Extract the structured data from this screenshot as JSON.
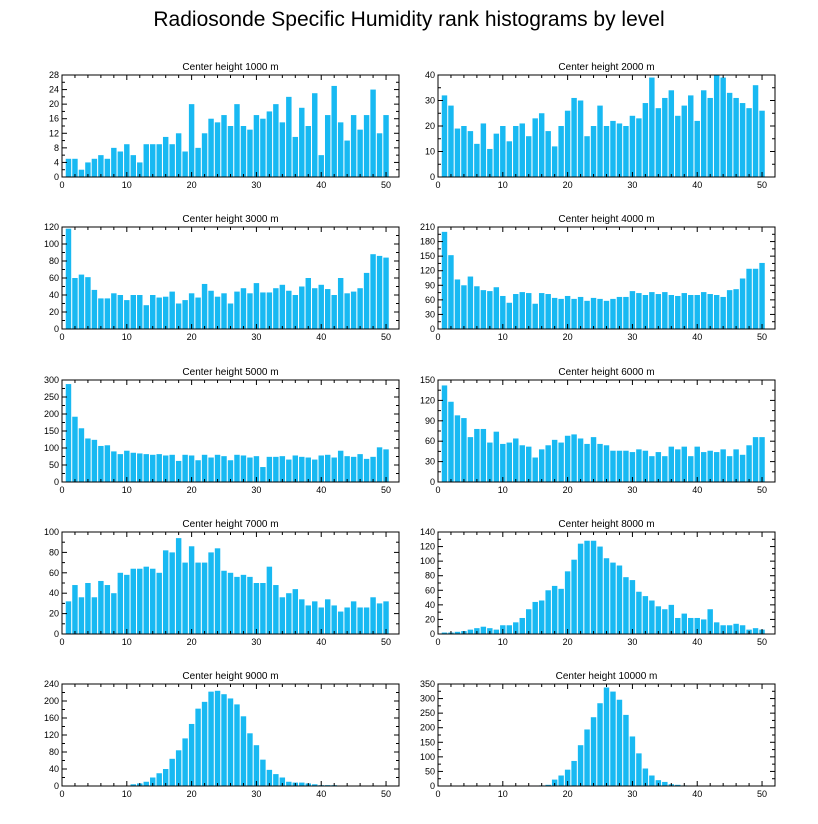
{
  "title": "Radiosonde Specific Humidity rank histograms by level",
  "colors": {
    "bar": "#18b9f2",
    "axis": "#000000",
    "background": "#ffffff"
  },
  "chart_data": [
    {
      "type": "bar",
      "title": "Center height 1000 m",
      "x_start": 1,
      "xlim": [
        0,
        52
      ],
      "xticks": [
        0,
        10,
        20,
        30,
        40,
        50
      ],
      "ylim": [
        0,
        28
      ],
      "yticks": [
        0,
        4,
        8,
        12,
        16,
        20,
        24,
        28
      ],
      "values": [
        5,
        5,
        2,
        4,
        5,
        6,
        5,
        8,
        7,
        9,
        6,
        4,
        9,
        9,
        9,
        11,
        9,
        12,
        7,
        20,
        8,
        12,
        16,
        15,
        17,
        14,
        20,
        14,
        13,
        17,
        16,
        18,
        20,
        15,
        22,
        11,
        19,
        14,
        23,
        6,
        17,
        25,
        15,
        10,
        17,
        13,
        17,
        24,
        12,
        17
      ]
    },
    {
      "type": "bar",
      "title": "Center height 2000 m",
      "x_start": 1,
      "xlim": [
        0,
        52
      ],
      "xticks": [
        0,
        10,
        20,
        30,
        40,
        50
      ],
      "ylim": [
        0,
        40
      ],
      "yticks": [
        0,
        10,
        20,
        30,
        40
      ],
      "values": [
        32,
        28,
        19,
        20,
        18,
        13,
        21,
        11,
        17,
        20,
        14,
        20,
        21,
        16,
        23,
        25,
        18,
        12,
        20,
        26,
        31,
        30,
        16,
        20,
        28,
        20,
        22,
        21,
        20,
        24,
        23,
        29,
        39,
        27,
        31,
        34,
        24,
        28,
        32,
        22,
        34,
        31,
        40,
        39,
        33,
        31,
        29,
        27,
        36,
        26
      ]
    },
    {
      "type": "bar",
      "title": "Center height 3000 m",
      "x_start": 1,
      "xlim": [
        0,
        52
      ],
      "xticks": [
        0,
        10,
        20,
        30,
        40,
        50
      ],
      "ylim": [
        0,
        120
      ],
      "yticks": [
        0,
        20,
        40,
        60,
        80,
        100,
        120
      ],
      "values": [
        118,
        60,
        64,
        61,
        46,
        36,
        36,
        42,
        40,
        34,
        40,
        40,
        28,
        40,
        37,
        38,
        44,
        30,
        34,
        42,
        37,
        53,
        45,
        38,
        42,
        30,
        44,
        48,
        42,
        54,
        43,
        43,
        48,
        52,
        45,
        40,
        50,
        60,
        48,
        52,
        47,
        40,
        60,
        42,
        44,
        48,
        66,
        88,
        86,
        84
      ]
    },
    {
      "type": "bar",
      "title": "Center height 4000 m",
      "x_start": 1,
      "xlim": [
        0,
        52
      ],
      "xticks": [
        0,
        10,
        20,
        30,
        40,
        50
      ],
      "ylim": [
        0,
        210
      ],
      "yticks": [
        0,
        30,
        60,
        90,
        120,
        150,
        180,
        210
      ],
      "values": [
        200,
        152,
        102,
        90,
        108,
        88,
        80,
        78,
        86,
        68,
        54,
        72,
        76,
        74,
        52,
        74,
        72,
        64,
        62,
        68,
        62,
        66,
        58,
        64,
        62,
        58,
        62,
        66,
        66,
        78,
        74,
        70,
        76,
        72,
        76,
        70,
        68,
        74,
        70,
        70,
        76,
        72,
        70,
        66,
        80,
        82,
        104,
        124,
        124,
        136
      ]
    },
    {
      "type": "bar",
      "title": "Center height 5000 m",
      "x_start": 1,
      "xlim": [
        0,
        52
      ],
      "xticks": [
        0,
        10,
        20,
        30,
        40,
        50
      ],
      "ylim": [
        0,
        300
      ],
      "yticks": [
        0,
        50,
        100,
        150,
        200,
        250,
        300
      ],
      "values": [
        288,
        192,
        158,
        128,
        124,
        106,
        108,
        90,
        82,
        92,
        86,
        84,
        82,
        80,
        82,
        78,
        80,
        62,
        80,
        78,
        64,
        80,
        72,
        80,
        76,
        64,
        80,
        78,
        72,
        76,
        44,
        74,
        74,
        76,
        66,
        78,
        74,
        72,
        66,
        78,
        80,
        72,
        92,
        76,
        74,
        82,
        68,
        74,
        102,
        96
      ]
    },
    {
      "type": "bar",
      "title": "Center height 6000 m",
      "x_start": 1,
      "xlim": [
        0,
        52
      ],
      "xticks": [
        0,
        10,
        20,
        30,
        40,
        50
      ],
      "ylim": [
        0,
        150
      ],
      "yticks": [
        0,
        30,
        60,
        90,
        120,
        150
      ],
      "values": [
        142,
        118,
        98,
        94,
        66,
        78,
        78,
        58,
        74,
        56,
        58,
        64,
        54,
        52,
        36,
        48,
        54,
        62,
        58,
        68,
        70,
        64,
        56,
        66,
        56,
        54,
        46,
        46,
        46,
        44,
        48,
        46,
        38,
        44,
        38,
        52,
        48,
        52,
        38,
        52,
        44,
        46,
        44,
        48,
        38,
        48,
        40,
        54,
        66,
        66
      ]
    },
    {
      "type": "bar",
      "title": "Center height 7000 m",
      "x_start": 1,
      "xlim": [
        0,
        52
      ],
      "xticks": [
        0,
        10,
        20,
        30,
        40,
        50
      ],
      "ylim": [
        0,
        100
      ],
      "yticks": [
        0,
        20,
        40,
        60,
        80,
        100
      ],
      "values": [
        32,
        48,
        36,
        50,
        36,
        52,
        48,
        40,
        60,
        58,
        64,
        64,
        66,
        64,
        60,
        82,
        80,
        94,
        70,
        86,
        70,
        70,
        80,
        84,
        62,
        60,
        56,
        58,
        56,
        50,
        50,
        66,
        48,
        36,
        40,
        44,
        34,
        28,
        32,
        26,
        34,
        28,
        22,
        26,
        32,
        26,
        26,
        36,
        30,
        32
      ]
    },
    {
      "type": "bar",
      "title": "Center height 8000 m",
      "x_start": 1,
      "xlim": [
        0,
        52
      ],
      "xticks": [
        0,
        10,
        20,
        30,
        40,
        50
      ],
      "ylim": [
        0,
        140
      ],
      "yticks": [
        0,
        20,
        40,
        60,
        80,
        100,
        120,
        140
      ],
      "values": [
        2,
        2,
        3,
        4,
        6,
        8,
        10,
        8,
        6,
        12,
        12,
        16,
        22,
        34,
        44,
        46,
        60,
        66,
        62,
        86,
        102,
        124,
        128,
        128,
        120,
        104,
        98,
        94,
        78,
        74,
        58,
        52,
        46,
        38,
        34,
        40,
        22,
        28,
        22,
        22,
        20,
        34,
        16,
        12,
        12,
        14,
        12,
        6,
        8,
        6
      ]
    },
    {
      "type": "bar",
      "title": "Center height 9000 m",
      "x_start": 1,
      "xlim": [
        0,
        52
      ],
      "xticks": [
        0,
        10,
        20,
        30,
        40,
        50
      ],
      "ylim": [
        0,
        240
      ],
      "yticks": [
        0,
        40,
        80,
        120,
        160,
        200,
        240
      ],
      "values": [
        0,
        0,
        0,
        0,
        0,
        0,
        0,
        0,
        0,
        0,
        4,
        6,
        10,
        20,
        30,
        40,
        64,
        84,
        112,
        146,
        182,
        198,
        222,
        224,
        216,
        206,
        192,
        164,
        124,
        96,
        62,
        38,
        28,
        20,
        10,
        8,
        8,
        6,
        4,
        2,
        2,
        2,
        0,
        0,
        0,
        0,
        0,
        0,
        0,
        0
      ]
    },
    {
      "type": "bar",
      "title": "Center height 10000 m",
      "x_start": 1,
      "xlim": [
        0,
        52
      ],
      "xticks": [
        0,
        10,
        20,
        30,
        40,
        50
      ],
      "ylim": [
        0,
        350
      ],
      "yticks": [
        0,
        50,
        100,
        150,
        200,
        250,
        300,
        350
      ],
      "values": [
        0,
        0,
        0,
        0,
        0,
        0,
        0,
        0,
        0,
        0,
        0,
        0,
        0,
        0,
        0,
        2,
        4,
        22,
        36,
        56,
        86,
        140,
        194,
        236,
        284,
        338,
        324,
        296,
        244,
        170,
        112,
        60,
        36,
        20,
        14,
        6,
        4,
        2,
        0,
        0,
        0,
        0,
        0,
        0,
        0,
        0,
        0,
        0,
        0,
        0
      ]
    }
  ]
}
